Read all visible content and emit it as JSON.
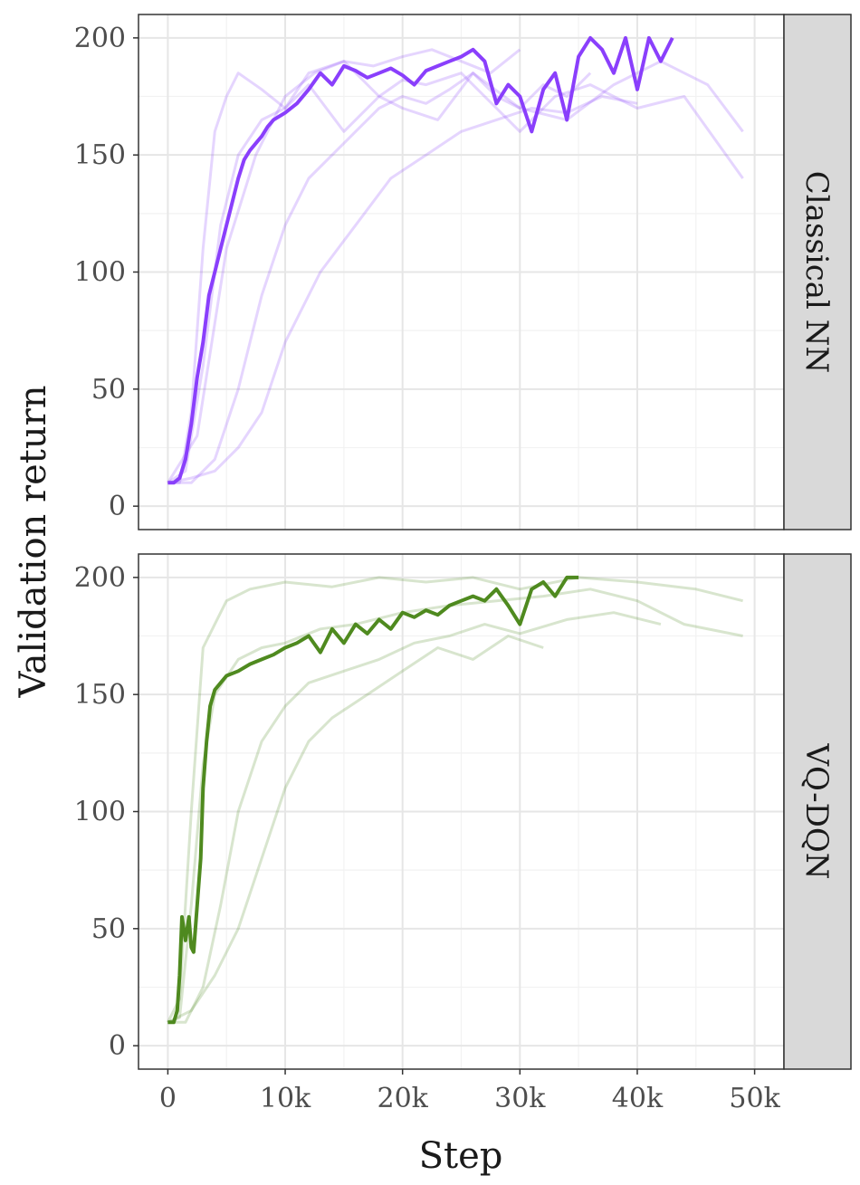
{
  "chart_data": {
    "type": "line",
    "xlabel": "Step",
    "ylabel": "Validation return",
    "xlim": [
      -2500,
      52500
    ],
    "x_ticks": [
      0,
      10000,
      20000,
      30000,
      40000,
      50000
    ],
    "x_tick_labels": [
      "0",
      "10k",
      "20k",
      "30k",
      "40k",
      "50k"
    ],
    "y_ticks": [
      0,
      50,
      100,
      150,
      200
    ],
    "y_tick_labels": [
      "0",
      "50",
      "100",
      "150",
      "200"
    ],
    "grid": true,
    "legend": "none",
    "panels": [
      {
        "label": "Classical NN",
        "color": "#8a3ffc",
        "ylim": [
          -10,
          210
        ],
        "series": [
          {
            "role": "highlighted-run",
            "x": [
              0,
              500,
              1000,
              1500,
              2000,
              2500,
              3000,
              3500,
              4000,
              4500,
              5000,
              5500,
              6000,
              6500,
              7000,
              7500,
              8000,
              8500,
              9000,
              10000,
              11000,
              12000,
              13000,
              14000,
              15000,
              16000,
              17000,
              18000,
              19000,
              20000,
              21000,
              22000,
              23000,
              24000,
              25000,
              26000,
              27000,
              28000,
              29000,
              30000,
              31000,
              32000,
              33000,
              34000,
              35000,
              36000,
              37000,
              38000,
              39000,
              40000,
              41000,
              42000,
              43000
            ],
            "values": [
              10,
              10,
              12,
              20,
              35,
              55,
              70,
              90,
              100,
              110,
              120,
              130,
              140,
              148,
              152,
              155,
              158,
              162,
              165,
              168,
              172,
              178,
              185,
              180,
              188,
              186,
              183,
              185,
              187,
              184,
              180,
              186,
              188,
              190,
              192,
              195,
              190,
              172,
              180,
              175,
              160,
              178,
              185,
              165,
              192,
              200,
              195,
              185,
              200,
              178,
              200,
              190,
              200
            ]
          },
          {
            "role": "background-run",
            "x": [
              0,
              1000,
              2000,
              3000,
              4000,
              5000,
              6000,
              8000,
              10000,
              12000,
              15000,
              18000,
              20000,
              22000,
              25000,
              28000,
              30000,
              33000,
              36000,
              40000,
              44000,
              49000
            ],
            "values": [
              10,
              10,
              40,
              110,
              160,
              175,
              185,
              178,
              170,
              185,
              190,
              175,
              182,
              180,
              185,
              170,
              160,
              175,
              180,
              170,
              175,
              140
            ]
          },
          {
            "role": "background-run",
            "x": [
              0,
              1500,
              3000,
              4500,
              6000,
              8000,
              10000,
              12000,
              15000,
              18000,
              20000,
              23000,
              26000,
              30000,
              34000,
              38000,
              42000,
              46000,
              49000
            ],
            "values": [
              10,
              15,
              60,
              120,
              150,
              165,
              170,
              180,
              160,
              175,
              170,
              165,
              185,
              170,
              165,
              180,
              190,
              180,
              160
            ]
          },
          {
            "role": "background-run",
            "x": [
              0,
              2000,
              4000,
              6000,
              8000,
              10000,
              12000,
              14000,
              16000,
              18000,
              20000,
              22000,
              24000,
              26000,
              28000,
              30000,
              32000,
              34000,
              36000
            ],
            "values": [
              10,
              10,
              20,
              50,
              90,
              120,
              140,
              150,
              160,
              170,
              175,
              172,
              178,
              185,
              175,
              170,
              180,
              175,
              185
            ]
          },
          {
            "role": "background-run",
            "x": [
              0,
              2000,
              4000,
              6000,
              8000,
              10000,
              13000,
              16000,
              19000,
              22000,
              25000,
              28000,
              31000,
              34000,
              37000,
              40000
            ],
            "values": [
              10,
              12,
              15,
              25,
              40,
              70,
              100,
              120,
              140,
              150,
              160,
              165,
              170,
              168,
              175,
              172
            ]
          },
          {
            "role": "background-run",
            "x": [
              0,
              2500,
              5000,
              7500,
              10000,
              12500,
              15000,
              17500,
              20000,
              22500,
              25000,
              27500,
              30000
            ],
            "values": [
              10,
              30,
              110,
              150,
              175,
              185,
              190,
              188,
              192,
              195,
              190,
              185,
              195
            ]
          }
        ]
      },
      {
        "label": "VQ-DQN",
        "color": "#4f8a1f",
        "ylim": [
          -10,
          210
        ],
        "series": [
          {
            "role": "highlighted-run",
            "x": [
              0,
              500,
              800,
              1000,
              1200,
              1500,
              1800,
              2000,
              2200,
              2500,
              2800,
              3000,
              3300,
              3600,
              4000,
              4500,
              5000,
              6000,
              7000,
              8000,
              9000,
              10000,
              11000,
              12000,
              13000,
              14000,
              15000,
              16000,
              17000,
              18000,
              19000,
              20000,
              21000,
              22000,
              23000,
              24000,
              25000,
              26000,
              27000,
              28000,
              29000,
              30000,
              31000,
              32000,
              33000,
              34000,
              35000
            ],
            "values": [
              10,
              10,
              15,
              30,
              55,
              45,
              55,
              42,
              40,
              60,
              80,
              110,
              130,
              145,
              152,
              155,
              158,
              160,
              163,
              165,
              167,
              170,
              172,
              175,
              168,
              178,
              172,
              180,
              176,
              182,
              178,
              185,
              183,
              186,
              184,
              188,
              190,
              192,
              190,
              195,
              188,
              180,
              195,
              198,
              192,
              200,
              200
            ]
          },
          {
            "role": "background-run",
            "x": [
              0,
              1000,
              2000,
              3000,
              4000,
              6000,
              8000,
              10000,
              13000,
              16000,
              20000,
              24000,
              28000,
              32000,
              36000,
              40000,
              44000,
              49000
            ],
            "values": [
              10,
              12,
              60,
              120,
              150,
              165,
              170,
              172,
              178,
              180,
              185,
              188,
              190,
              192,
              195,
              190,
              180,
              175
            ]
          },
          {
            "role": "background-run",
            "x": [
              0,
              1500,
              3000,
              4500,
              6000,
              8000,
              10000,
              12000,
              15000,
              18000,
              21000,
              24000,
              27000,
              30000,
              34000,
              38000,
              42000
            ],
            "values": [
              10,
              10,
              25,
              60,
              100,
              130,
              145,
              155,
              160,
              165,
              172,
              175,
              180,
              176,
              182,
              185,
              180
            ]
          },
          {
            "role": "background-run",
            "x": [
              0,
              2000,
              4000,
              6000,
              8000,
              10000,
              12000,
              14000,
              17000,
              20000,
              23000,
              26000,
              29000,
              32000
            ],
            "values": [
              10,
              15,
              30,
              50,
              80,
              110,
              130,
              140,
              150,
              160,
              170,
              165,
              175,
              170
            ]
          },
          {
            "role": "background-run",
            "x": [
              0,
              1000,
              2000,
              3000,
              5000,
              7000,
              10000,
              14000,
              18000,
              22000,
              26000,
              30000,
              35000,
              40000,
              45000,
              49000
            ],
            "values": [
              10,
              20,
              100,
              170,
              190,
              195,
              198,
              196,
              200,
              198,
              200,
              195,
              200,
              198,
              195,
              190
            ]
          }
        ]
      }
    ]
  }
}
